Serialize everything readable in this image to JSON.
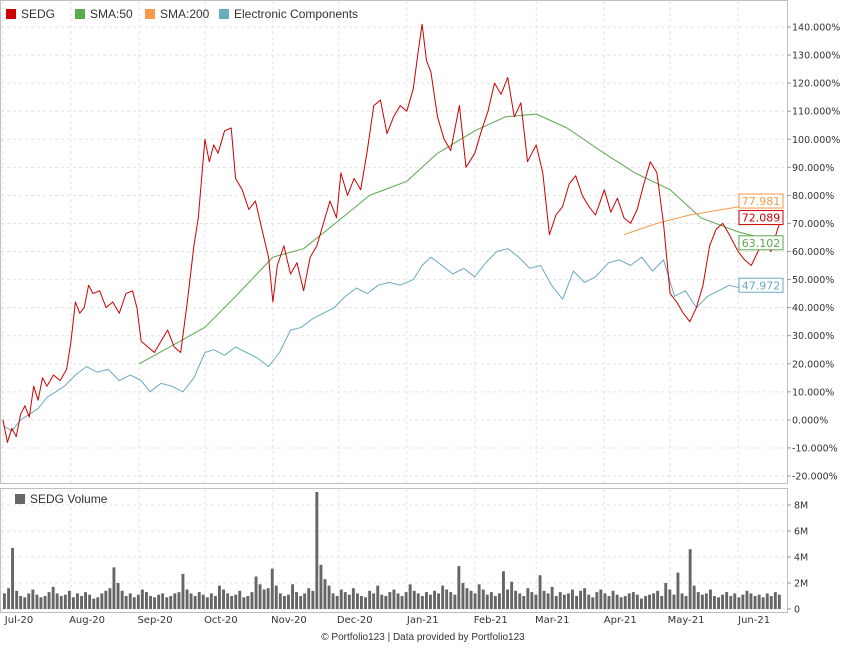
{
  "chart_data": {
    "type": "line",
    "legend": [
      {
        "label": "SEDG",
        "color": "#cc0000"
      },
      {
        "label": "SMA:50",
        "color": "#5aa84f"
      },
      {
        "label": "SMA:200",
        "color": "#f59a4b"
      },
      {
        "label": "Electronic Components",
        "color": "#6aaabf"
      }
    ],
    "y_ticks": [
      "140.000%",
      "130.000%",
      "120.000%",
      "110.000%",
      "100.000%",
      "90.000%",
      "80.000%",
      "70.000%",
      "60.000%",
      "50.000%",
      "40.000%",
      "30.000%",
      "20.000%",
      "10.000%",
      "0.000%",
      "-10.000%",
      "-20.000%"
    ],
    "ylim": [
      -20,
      140
    ],
    "x_ticks": [
      "Jul-20",
      "Aug-20",
      "Sep-20",
      "Oct-20",
      "Nov-20",
      "Dec-20",
      "Jan-21",
      "Feb-21",
      "Mar-21",
      "Apr-21",
      "May-21",
      "Jun-21"
    ],
    "series": [
      {
        "name": "SEDG",
        "color": "#cc0000",
        "last_label": "72.089",
        "points": [
          [
            "2020-07-01",
            0
          ],
          [
            "2020-07-03",
            -8
          ],
          [
            "2020-07-05",
            -3
          ],
          [
            "2020-07-07",
            -6
          ],
          [
            "2020-07-09",
            2
          ],
          [
            "2020-07-11",
            5
          ],
          [
            "2020-07-13",
            1
          ],
          [
            "2020-07-15",
            12
          ],
          [
            "2020-07-17",
            7
          ],
          [
            "2020-07-19",
            15
          ],
          [
            "2020-07-21",
            12
          ],
          [
            "2020-07-24",
            16
          ],
          [
            "2020-07-27",
            14
          ],
          [
            "2020-07-30",
            18
          ],
          [
            "2020-08-01",
            28
          ],
          [
            "2020-08-03",
            42
          ],
          [
            "2020-08-05",
            38
          ],
          [
            "2020-08-07",
            40
          ],
          [
            "2020-08-09",
            48
          ],
          [
            "2020-08-11",
            45
          ],
          [
            "2020-08-14",
            46
          ],
          [
            "2020-08-17",
            40
          ],
          [
            "2020-08-20",
            42
          ],
          [
            "2020-08-23",
            38
          ],
          [
            "2020-08-26",
            45
          ],
          [
            "2020-08-29",
            46
          ],
          [
            "2020-08-31",
            40
          ],
          [
            "2020-09-02",
            28
          ],
          [
            "2020-09-05",
            26
          ],
          [
            "2020-09-08",
            24
          ],
          [
            "2020-09-11",
            28
          ],
          [
            "2020-09-14",
            32
          ],
          [
            "2020-09-17",
            26
          ],
          [
            "2020-09-20",
            24
          ],
          [
            "2020-09-23",
            42
          ],
          [
            "2020-09-26",
            62
          ],
          [
            "2020-09-28",
            72
          ],
          [
            "2020-10-01",
            100
          ],
          [
            "2020-10-03",
            92
          ],
          [
            "2020-10-05",
            98
          ],
          [
            "2020-10-07",
            95
          ],
          [
            "2020-10-10",
            103
          ],
          [
            "2020-10-13",
            104
          ],
          [
            "2020-10-15",
            86
          ],
          [
            "2020-10-18",
            82
          ],
          [
            "2020-10-21",
            75
          ],
          [
            "2020-10-24",
            78
          ],
          [
            "2020-10-27",
            68
          ],
          [
            "2020-10-30",
            58
          ],
          [
            "2020-11-01",
            42
          ],
          [
            "2020-11-03",
            55
          ],
          [
            "2020-11-06",
            62
          ],
          [
            "2020-11-09",
            52
          ],
          [
            "2020-11-12",
            56
          ],
          [
            "2020-11-15",
            46
          ],
          [
            "2020-11-18",
            58
          ],
          [
            "2020-11-21",
            62
          ],
          [
            "2020-11-24",
            70
          ],
          [
            "2020-11-27",
            78
          ],
          [
            "2020-11-30",
            72
          ],
          [
            "2020-12-02",
            88
          ],
          [
            "2020-12-05",
            80
          ],
          [
            "2020-12-08",
            86
          ],
          [
            "2020-12-11",
            82
          ],
          [
            "2020-12-14",
            96
          ],
          [
            "2020-12-17",
            112
          ],
          [
            "2020-12-20",
            114
          ],
          [
            "2020-12-23",
            102
          ],
          [
            "2020-12-26",
            108
          ],
          [
            "2020-12-29",
            112
          ],
          [
            "2021-01-01",
            110
          ],
          [
            "2021-01-04",
            118
          ],
          [
            "2021-01-06",
            130
          ],
          [
            "2021-01-08",
            141
          ],
          [
            "2021-01-10",
            128
          ],
          [
            "2021-01-12",
            124
          ],
          [
            "2021-01-15",
            108
          ],
          [
            "2021-01-18",
            100
          ],
          [
            "2021-01-21",
            96
          ],
          [
            "2021-01-25",
            112
          ],
          [
            "2021-01-28",
            90
          ],
          [
            "2021-02-01",
            95
          ],
          [
            "2021-02-04",
            103
          ],
          [
            "2021-02-07",
            110
          ],
          [
            "2021-02-10",
            120
          ],
          [
            "2021-02-13",
            116
          ],
          [
            "2021-02-16",
            122
          ],
          [
            "2021-02-19",
            108
          ],
          [
            "2021-02-22",
            113
          ],
          [
            "2021-02-25",
            92
          ],
          [
            "2021-03-01",
            98
          ],
          [
            "2021-03-04",
            88
          ],
          [
            "2021-03-07",
            66
          ],
          [
            "2021-03-10",
            73
          ],
          [
            "2021-03-13",
            76
          ],
          [
            "2021-03-16",
            84
          ],
          [
            "2021-03-19",
            87
          ],
          [
            "2021-03-22",
            80
          ],
          [
            "2021-03-25",
            76
          ],
          [
            "2021-03-28",
            73
          ],
          [
            "2021-04-01",
            82
          ],
          [
            "2021-04-04",
            74
          ],
          [
            "2021-04-07",
            79
          ],
          [
            "2021-04-10",
            72
          ],
          [
            "2021-04-13",
            70
          ],
          [
            "2021-04-16",
            75
          ],
          [
            "2021-04-19",
            84
          ],
          [
            "2021-04-22",
            92
          ],
          [
            "2021-04-25",
            88
          ],
          [
            "2021-04-28",
            70
          ],
          [
            "2021-05-01",
            45
          ],
          [
            "2021-05-04",
            42
          ],
          [
            "2021-05-07",
            38
          ],
          [
            "2021-05-10",
            35
          ],
          [
            "2021-05-13",
            40
          ],
          [
            "2021-05-16",
            48
          ],
          [
            "2021-05-19",
            62
          ],
          [
            "2021-05-22",
            68
          ],
          [
            "2021-05-25",
            70
          ],
          [
            "2021-05-28",
            66
          ],
          [
            "2021-06-01",
            60
          ],
          [
            "2021-06-04",
            57
          ],
          [
            "2021-06-07",
            55
          ],
          [
            "2021-06-10",
            60
          ],
          [
            "2021-06-13",
            63
          ],
          [
            "2021-06-16",
            60
          ],
          [
            "2021-06-19",
            68
          ],
          [
            "2021-06-21",
            72.089
          ]
        ]
      },
      {
        "name": "SMA:50",
        "color": "#5aa84f",
        "last_label": "63.102",
        "points": [
          [
            "2020-09-01",
            20
          ],
          [
            "2020-09-15",
            26
          ],
          [
            "2020-10-01",
            33
          ],
          [
            "2020-10-15",
            44
          ],
          [
            "2020-11-01",
            58
          ],
          [
            "2020-11-15",
            61
          ],
          [
            "2020-12-01",
            71
          ],
          [
            "2020-12-15",
            80
          ],
          [
            "2021-01-01",
            85
          ],
          [
            "2021-01-15",
            95
          ],
          [
            "2021-02-01",
            103
          ],
          [
            "2021-02-15",
            108
          ],
          [
            "2021-03-01",
            109
          ],
          [
            "2021-03-15",
            104
          ],
          [
            "2021-04-01",
            95
          ],
          [
            "2021-04-15",
            88
          ],
          [
            "2021-05-01",
            82
          ],
          [
            "2021-05-15",
            72
          ],
          [
            "2021-06-01",
            67
          ],
          [
            "2021-06-21",
            63.102
          ]
        ]
      },
      {
        "name": "SMA:200",
        "color": "#f59a4b",
        "last_label": "77.981",
        "points": [
          [
            "2021-04-10",
            66
          ],
          [
            "2021-04-25",
            70
          ],
          [
            "2021-05-10",
            73
          ],
          [
            "2021-05-25",
            75
          ],
          [
            "2021-06-10",
            77
          ],
          [
            "2021-06-21",
            77.981
          ]
        ]
      },
      {
        "name": "Electronic Components",
        "color": "#6aaabf",
        "last_label": "47.972",
        "points": [
          [
            "2020-07-01",
            -2
          ],
          [
            "2020-07-05",
            -4
          ],
          [
            "2020-07-09",
            0
          ],
          [
            "2020-07-13",
            2
          ],
          [
            "2020-07-17",
            4
          ],
          [
            "2020-07-21",
            8
          ],
          [
            "2020-07-25",
            10
          ],
          [
            "2020-07-29",
            12
          ],
          [
            "2020-08-03",
            16
          ],
          [
            "2020-08-08",
            19
          ],
          [
            "2020-08-13",
            17
          ],
          [
            "2020-08-18",
            18
          ],
          [
            "2020-08-23",
            14
          ],
          [
            "2020-08-28",
            16
          ],
          [
            "2020-09-02",
            14
          ],
          [
            "2020-09-06",
            10
          ],
          [
            "2020-09-11",
            13
          ],
          [
            "2020-09-16",
            12
          ],
          [
            "2020-09-21",
            10
          ],
          [
            "2020-09-26",
            15
          ],
          [
            "2020-10-01",
            24
          ],
          [
            "2020-10-05",
            25
          ],
          [
            "2020-10-10",
            23
          ],
          [
            "2020-10-15",
            26
          ],
          [
            "2020-10-20",
            24
          ],
          [
            "2020-10-25",
            22
          ],
          [
            "2020-10-30",
            19
          ],
          [
            "2020-11-04",
            24
          ],
          [
            "2020-11-09",
            32
          ],
          [
            "2020-11-14",
            33
          ],
          [
            "2020-11-19",
            36
          ],
          [
            "2020-11-24",
            38
          ],
          [
            "2020-11-29",
            40
          ],
          [
            "2020-12-04",
            44
          ],
          [
            "2020-12-09",
            47
          ],
          [
            "2020-12-14",
            45
          ],
          [
            "2020-12-19",
            48
          ],
          [
            "2020-12-24",
            49
          ],
          [
            "2020-12-29",
            48
          ],
          [
            "2021-01-04",
            50
          ],
          [
            "2021-01-08",
            55
          ],
          [
            "2021-01-12",
            58
          ],
          [
            "2021-01-17",
            55
          ],
          [
            "2021-01-22",
            52
          ],
          [
            "2021-01-27",
            54
          ],
          [
            "2021-02-01",
            51
          ],
          [
            "2021-02-06",
            56
          ],
          [
            "2021-02-11",
            60
          ],
          [
            "2021-02-16",
            61
          ],
          [
            "2021-02-21",
            58
          ],
          [
            "2021-02-26",
            54
          ],
          [
            "2021-03-03",
            55
          ],
          [
            "2021-03-08",
            48
          ],
          [
            "2021-03-13",
            43
          ],
          [
            "2021-03-18",
            53
          ],
          [
            "2021-03-23",
            49
          ],
          [
            "2021-03-28",
            51
          ],
          [
            "2021-04-03",
            56
          ],
          [
            "2021-04-08",
            57
          ],
          [
            "2021-04-13",
            55
          ],
          [
            "2021-04-18",
            58
          ],
          [
            "2021-04-23",
            53
          ],
          [
            "2021-04-28",
            57
          ],
          [
            "2021-05-03",
            44
          ],
          [
            "2021-05-08",
            46
          ],
          [
            "2021-05-13",
            40
          ],
          [
            "2021-05-18",
            44
          ],
          [
            "2021-05-23",
            46
          ],
          [
            "2021-05-28",
            48
          ],
          [
            "2021-06-02",
            47
          ],
          [
            "2021-06-07",
            49
          ],
          [
            "2021-06-12",
            48
          ],
          [
            "2021-06-17",
            50
          ],
          [
            "2021-06-21",
            47.972
          ]
        ]
      }
    ]
  },
  "volume_chart": {
    "type": "bar",
    "label": "SEDG Volume",
    "color": "#666666",
    "y_ticks": [
      "8M",
      "6M",
      "4M",
      "2M",
      "0"
    ],
    "ylim": [
      0,
      9
    ],
    "values": [
      1.2,
      1.6,
      4.7,
      1.4,
      1.0,
      0.9,
      1.2,
      1.5,
      1.1,
      0.9,
      1.0,
      1.3,
      1.7,
      1.2,
      1.0,
      1.1,
      1.4,
      0.9,
      1.2,
      1.0,
      1.3,
      1.1,
      0.8,
      0.9,
      1.2,
      1.4,
      1.6,
      3.2,
      2.0,
      1.4,
      1.0,
      1.2,
      0.9,
      1.1,
      1.5,
      1.3,
      1.0,
      0.9,
      1.1,
      1.2,
      0.9,
      1.0,
      1.2,
      1.3,
      2.7,
      1.5,
      1.2,
      1.0,
      1.3,
      1.1,
      0.9,
      1.2,
      1.0,
      1.8,
      1.5,
      1.2,
      1.0,
      1.1,
      1.4,
      0.9,
      1.0,
      1.3,
      2.5,
      1.9,
      1.5,
      1.6,
      3.1,
      1.8,
      1.2,
      1.0,
      1.1,
      1.9,
      1.3,
      1.0,
      1.2,
      1.6,
      1.4,
      9.0,
      3.4,
      2.3,
      1.8,
      1.2,
      1.0,
      1.5,
      1.3,
      1.1,
      1.6,
      1.2,
      1.0,
      0.9,
      1.4,
      1.2,
      1.8,
      1.1,
      1.0,
      1.3,
      1.5,
      1.2,
      1.0,
      1.3,
      1.9,
      1.4,
      1.2,
      1.0,
      1.3,
      1.1,
      1.4,
      1.2,
      1.8,
      1.5,
      1.3,
      1.1,
      3.3,
      2.0,
      1.6,
      1.4,
      1.2,
      1.9,
      1.5,
      1.1,
      1.3,
      1.0,
      1.2,
      2.9,
      1.5,
      2.1,
      1.4,
      1.2,
      1.0,
      1.6,
      1.3,
      1.1,
      2.6,
      1.4,
      1.2,
      1.7,
      1.0,
      1.3,
      1.1,
      1.2,
      1.5,
      1.0,
      1.4,
      1.6,
      1.1,
      0.9,
      1.3,
      1.5,
      1.2,
      1.0,
      1.4,
      1.1,
      0.9,
      1.0,
      1.2,
      1.3,
      1.1,
      0.8,
      1.0,
      1.1,
      1.2,
      1.4,
      1.0,
      2.0,
      1.5,
      1.1,
      2.8,
      1.2,
      1.0,
      4.6,
      1.8,
      1.3,
      1.1,
      1.2,
      1.5,
      1.0,
      0.9,
      1.1,
      1.3,
      1.0,
      1.2,
      0.9,
      1.1,
      1.4,
      1.2,
      1.0,
      1.1,
      0.9,
      1.2,
      1.0,
      1.3,
      1.1
    ]
  },
  "footer": "© Portfolio123 | Data provided by Portfolio123"
}
